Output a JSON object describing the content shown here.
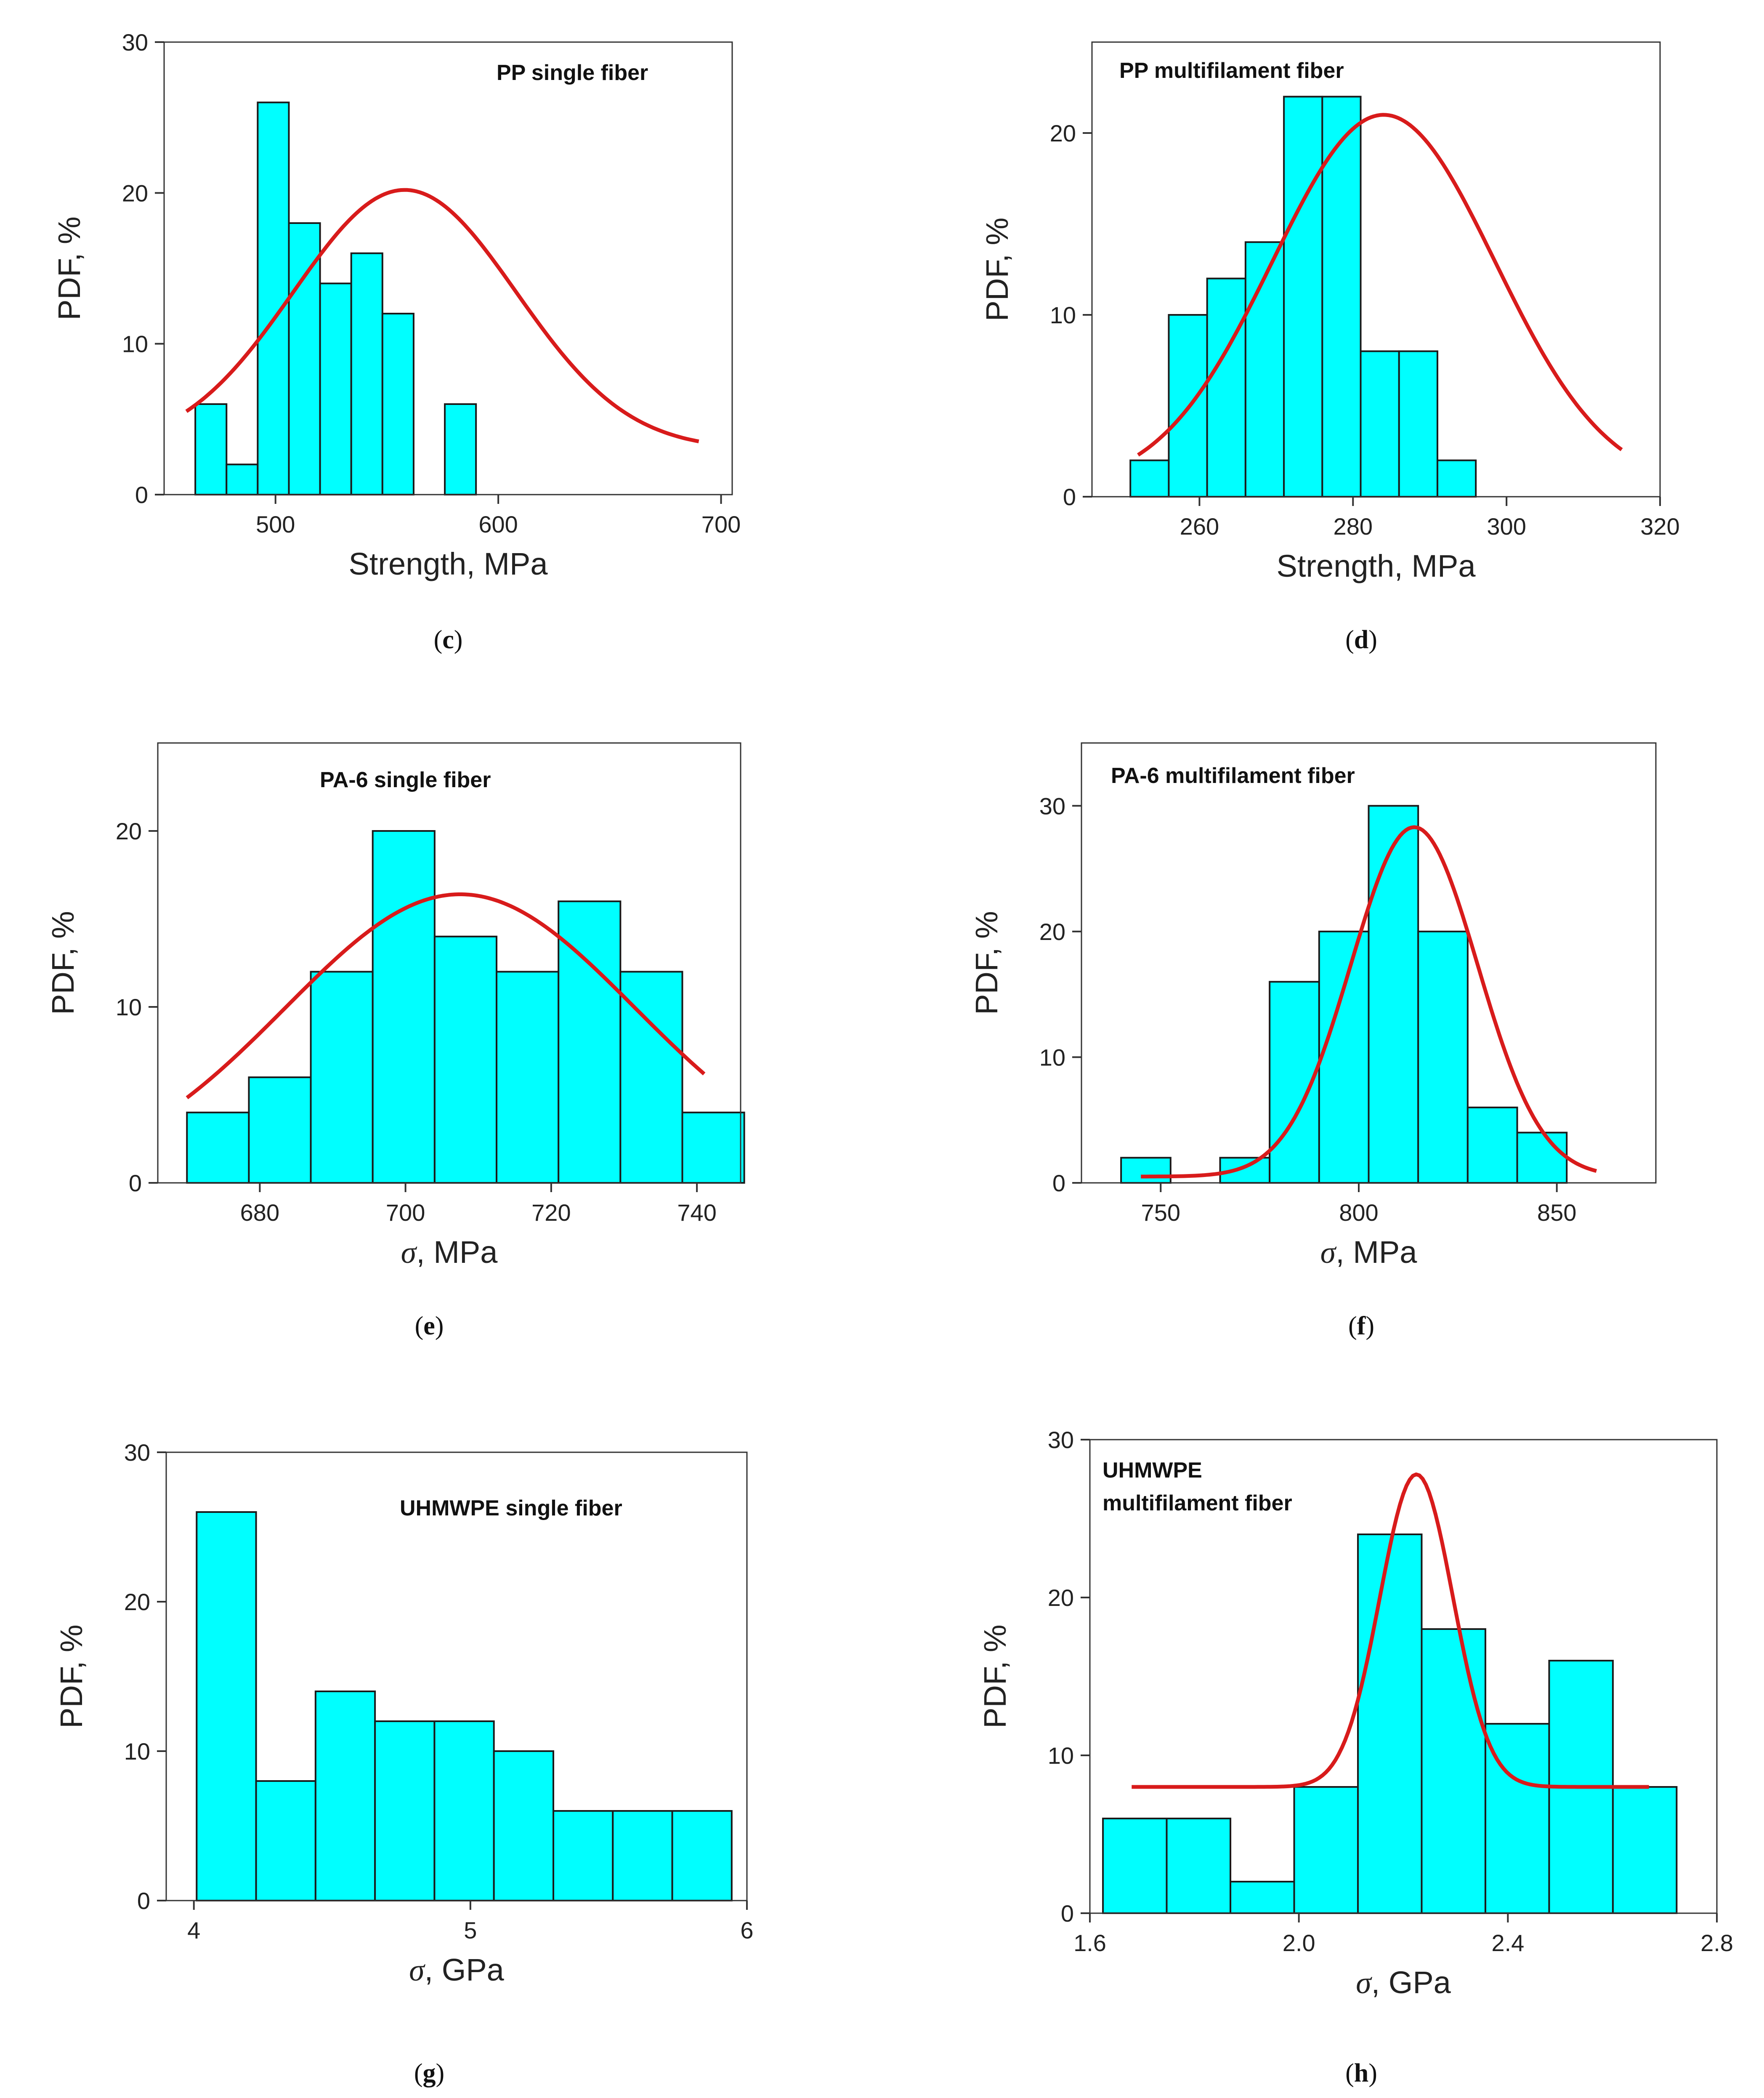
{
  "chart_data": [
    {
      "id": "c",
      "type": "bar",
      "caption": "(c)",
      "title": "PP single fiber",
      "xlabel_symbol": "",
      "xlabel": "Strength, MPa",
      "ylabel": "PDF, %",
      "xlim": [
        450,
        705
      ],
      "ylim": [
        0,
        30
      ],
      "xticks": [
        500,
        600,
        700
      ],
      "xtick_labels": [
        "500",
        "600",
        "700"
      ],
      "yticks": [
        0,
        10,
        20,
        30
      ],
      "ytick_labels": [
        "0",
        "10",
        "20",
        "30"
      ],
      "bin_width": 14,
      "bars": [
        {
          "x": 464,
          "y": 6
        },
        {
          "x": 478,
          "y": 2
        },
        {
          "x": 492,
          "y": 26
        },
        {
          "x": 506,
          "y": 18
        },
        {
          "x": 520,
          "y": 14
        },
        {
          "x": 534,
          "y": 16
        },
        {
          "x": 548,
          "y": 12
        },
        {
          "x": 576,
          "y": 6
        }
      ],
      "fit": {
        "type": "gauss",
        "x_range": [
          460,
          690
        ],
        "baseline": 3.0,
        "amplitude": 17.2,
        "center": 558,
        "sigma": 50
      }
    },
    {
      "id": "d",
      "type": "bar",
      "caption": "(d)",
      "title": "PP multifilament fiber",
      "xlabel_symbol": "",
      "xlabel": "Strength, MPa",
      "ylabel": "PDF, %",
      "xlim": [
        246,
        320
      ],
      "ylim": [
        0,
        25
      ],
      "xticks": [
        260,
        280,
        300,
        320
      ],
      "xtick_labels": [
        "260",
        "280",
        "300",
        "320"
      ],
      "yticks": [
        0,
        10,
        20
      ],
      "ytick_labels": [
        "0",
        "10",
        "20"
      ],
      "bin_width": 5,
      "bars": [
        {
          "x": 251,
          "y": 2
        },
        {
          "x": 256,
          "y": 10
        },
        {
          "x": 261,
          "y": 12
        },
        {
          "x": 266,
          "y": 14
        },
        {
          "x": 271,
          "y": 22
        },
        {
          "x": 276,
          "y": 22
        },
        {
          "x": 281,
          "y": 8
        },
        {
          "x": 286,
          "y": 8
        },
        {
          "x": 291,
          "y": 2
        }
      ],
      "fit": {
        "type": "gauss",
        "x_range": [
          252,
          315
        ],
        "baseline": 0.5,
        "amplitude": 20.5,
        "center": 284,
        "sigma": 14.5
      }
    },
    {
      "id": "e",
      "type": "bar",
      "caption": "(e)",
      "title": "PA-6 single fiber",
      "xlabel_symbol": "σ",
      "xlabel": ", MPa",
      "ylabel": "PDF, %",
      "xlim": [
        666,
        746
      ],
      "ylim": [
        0,
        25
      ],
      "xticks": [
        680,
        700,
        720,
        740
      ],
      "xtick_labels": [
        "680",
        "700",
        "720",
        "740"
      ],
      "yticks": [
        0,
        10,
        20
      ],
      "ytick_labels": [
        "0",
        "10",
        "20"
      ],
      "bin_width": 8.5,
      "bars": [
        {
          "x": 670,
          "y": 4
        },
        {
          "x": 678.5,
          "y": 6
        },
        {
          "x": 687,
          "y": 12
        },
        {
          "x": 695.5,
          "y": 20
        },
        {
          "x": 704,
          "y": 14
        },
        {
          "x": 712.5,
          "y": 12
        },
        {
          "x": 721,
          "y": 16
        },
        {
          "x": 729.5,
          "y": 12
        },
        {
          "x": 738,
          "y": 4
        }
      ],
      "fit": {
        "type": "gauss",
        "x_range": [
          670,
          741
        ],
        "baseline": 0,
        "amplitude": 16.4,
        "center": 707.5,
        "sigma": 24
      }
    },
    {
      "id": "f",
      "type": "bar",
      "caption": "(f)",
      "title": "PA-6 multifilament fiber",
      "xlabel_symbol": "σ",
      "xlabel": ", MPa",
      "ylabel": "PDF, %",
      "xlim": [
        730,
        875
      ],
      "ylim": [
        0,
        35
      ],
      "xticks": [
        750,
        800,
        850
      ],
      "xtick_labels": [
        "750",
        "800",
        "850"
      ],
      "yticks": [
        0,
        10,
        20,
        30
      ],
      "ytick_labels": [
        "0",
        "10",
        "20",
        "30"
      ],
      "bin_width": 12.5,
      "bars": [
        {
          "x": 740,
          "y": 2
        },
        {
          "x": 765,
          "y": 2
        },
        {
          "x": 777.5,
          "y": 16
        },
        {
          "x": 790,
          "y": 20
        },
        {
          "x": 802.5,
          "y": 30
        },
        {
          "x": 815,
          "y": 20
        },
        {
          "x": 827.5,
          "y": 6
        },
        {
          "x": 840,
          "y": 4
        }
      ],
      "fit": {
        "type": "gauss",
        "x_range": [
          745,
          860
        ],
        "baseline": 0.5,
        "amplitude": 27.8,
        "center": 814,
        "sigma": 16
      }
    },
    {
      "id": "g",
      "type": "bar",
      "caption": "(g)",
      "title": "UHMWPE single fiber",
      "xlabel_symbol": "σ",
      "xlabel": ", GPa",
      "ylabel": "PDF, %",
      "xlim": [
        3.9,
        6.0
      ],
      "ylim": [
        0,
        30
      ],
      "xticks": [
        4,
        5,
        6
      ],
      "xtick_labels": [
        "4",
        "5",
        "6"
      ],
      "yticks": [
        0,
        10,
        20,
        30
      ],
      "ytick_labels": [
        "0",
        "10",
        "20",
        "30"
      ],
      "bin_width": 0.215,
      "bars": [
        {
          "x": 4.01,
          "y": 26
        },
        {
          "x": 4.225,
          "y": 8
        },
        {
          "x": 4.44,
          "y": 14
        },
        {
          "x": 4.655,
          "y": 12
        },
        {
          "x": 4.87,
          "y": 12
        },
        {
          "x": 5.085,
          "y": 10
        },
        {
          "x": 5.3,
          "y": 6
        },
        {
          "x": 5.515,
          "y": 6
        },
        {
          "x": 5.73,
          "y": 6
        }
      ],
      "fit": null
    },
    {
      "id": "h",
      "type": "bar",
      "caption": "(h)",
      "title": "UHMWPE",
      "title2": "multifilament fiber",
      "xlabel_symbol": "σ",
      "xlabel": ", GPa",
      "ylabel": "PDF, %",
      "xlim": [
        1.6,
        2.8
      ],
      "ylim": [
        0,
        30
      ],
      "xticks": [
        1.6,
        2.0,
        2.4,
        2.8
      ],
      "xtick_labels": [
        "1.6",
        "2.0",
        "2.4",
        "2.8"
      ],
      "yticks": [
        0,
        10,
        20,
        30
      ],
      "ytick_labels": [
        "0",
        "10",
        "20",
        "30"
      ],
      "bin_width": 0.122,
      "bars": [
        {
          "x": 1.625,
          "y": 6
        },
        {
          "x": 1.747,
          "y": 6
        },
        {
          "x": 1.869,
          "y": 2
        },
        {
          "x": 1.991,
          "y": 8
        },
        {
          "x": 2.113,
          "y": 24
        },
        {
          "x": 2.235,
          "y": 18
        },
        {
          "x": 2.357,
          "y": 12
        },
        {
          "x": 2.479,
          "y": 16
        },
        {
          "x": 2.601,
          "y": 8
        }
      ],
      "fit": {
        "type": "gauss",
        "x_range": [
          1.68,
          2.67
        ],
        "baseline": 8.0,
        "amplitude": 19.8,
        "center": 2.225,
        "sigma": 0.07
      }
    }
  ]
}
